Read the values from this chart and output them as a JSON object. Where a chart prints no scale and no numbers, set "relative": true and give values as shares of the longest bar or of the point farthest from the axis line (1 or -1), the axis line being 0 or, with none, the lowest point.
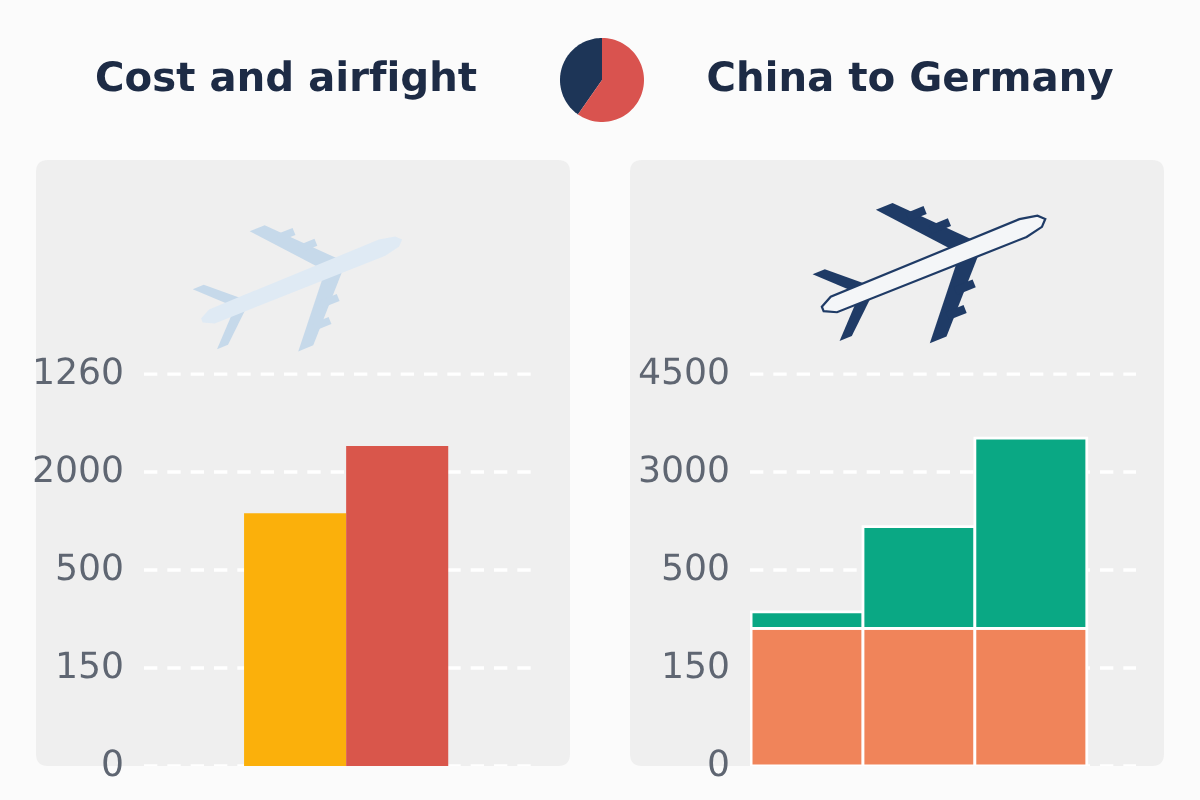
{
  "chart_data": [
    {
      "type": "bar",
      "title": "Cost and airfight",
      "relative": true,
      "categories": [
        null,
        null
      ],
      "values": [
        0.79,
        1.0
      ],
      "colors": [
        "#fbb00b",
        "#d9564b"
      ],
      "annotations": [
        "1260",
        "2000",
        "500",
        "150",
        "0"
      ],
      "grid": "y"
    },
    {
      "type": "bar",
      "title": "China to Germany",
      "relative": true,
      "categories": [
        null,
        null,
        null
      ],
      "stacked": true,
      "series": [
        {
          "color": "#f0845a",
          "values": [
            0.42,
            0.42,
            0.42
          ]
        },
        {
          "color": "#0aa884",
          "values": [
            0.05,
            0.31,
            0.58
          ]
        }
      ],
      "annotations": [
        "4500",
        "3000",
        "500",
        "150",
        "0"
      ],
      "grid": "y"
    }
  ]
}
